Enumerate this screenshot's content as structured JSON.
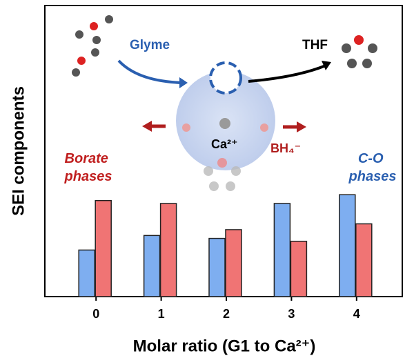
{
  "chart_data": {
    "type": "bar",
    "x_label": "Molar ratio (G1 to Ca²⁺)",
    "y_label": "SEI components",
    "categories": [
      "0",
      "1",
      "2",
      "3",
      "4"
    ],
    "series": [
      {
        "name": "C-O phases",
        "color": "#7eaef0",
        "values": [
          16,
          21,
          20,
          32,
          35
        ]
      },
      {
        "name": "Borate phases",
        "color": "#f07474",
        "values": [
          33,
          32,
          23,
          19,
          25
        ]
      }
    ],
    "ylim": [
      0,
      100
    ],
    "annotations": [
      "Glyme",
      "THF",
      "Ca²⁺",
      "BH₄⁻"
    ]
  }
}
